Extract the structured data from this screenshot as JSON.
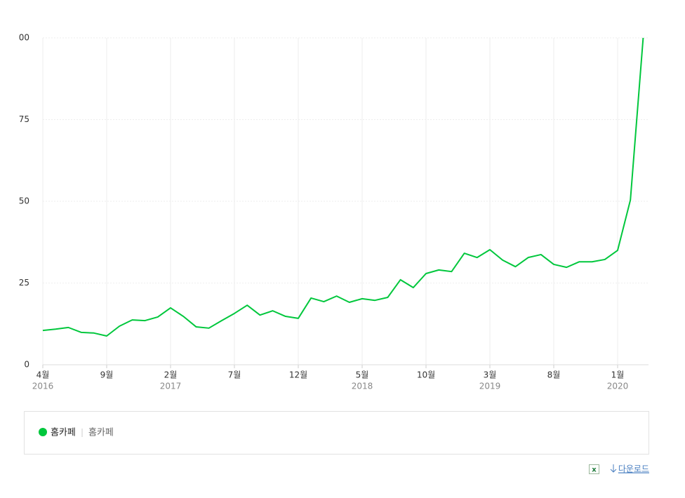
{
  "chart_data": {
    "type": "line",
    "categories": [
      "4월",
      null,
      null,
      null,
      null,
      "9월",
      null,
      null,
      null,
      null,
      "2월",
      null,
      null,
      null,
      null,
      "7월",
      null,
      null,
      null,
      null,
      "12월",
      null,
      null,
      null,
      null,
      "5월",
      null,
      null,
      null,
      null,
      "10월",
      null,
      null,
      null,
      null,
      "3월",
      null,
      null,
      null,
      null,
      "8월",
      null,
      null,
      null,
      null,
      "1월",
      null,
      null
    ],
    "year_labels": [
      "2016",
      null,
      null,
      null,
      null,
      null,
      null,
      null,
      null,
      null,
      "2017",
      null,
      null,
      null,
      null,
      null,
      null,
      null,
      null,
      null,
      null,
      null,
      null,
      null,
      null,
      "2018",
      null,
      null,
      null,
      null,
      null,
      null,
      null,
      null,
      null,
      "2019",
      null,
      null,
      null,
      null,
      null,
      null,
      null,
      null,
      null,
      "2020",
      null,
      null
    ],
    "series": [
      {
        "name": "홈카페",
        "color": "#00c73c",
        "values": [
          10.5,
          10.9,
          11.4,
          9.9,
          9.7,
          8.8,
          11.8,
          13.7,
          13.5,
          14.6,
          17.4,
          14.8,
          11.6,
          11.2,
          13.5,
          15.7,
          18.2,
          15.2,
          16.5,
          14.8,
          14.2,
          20.4,
          19.3,
          21,
          19.1,
          20.2,
          19.7,
          20.6,
          26,
          23.6,
          27.9,
          29,
          28.5,
          34.1,
          32.8,
          35.2,
          32,
          30,
          32.8,
          33.7,
          30.7,
          29.8,
          31.5,
          31.5,
          32.2,
          35,
          50.4,
          100
        ]
      }
    ],
    "legend_keywords": "홈카페",
    "download_label": "다운로드",
    "ylim": [
      0,
      100
    ],
    "yticks": [
      0,
      25,
      50,
      75,
      {
        "value": 100,
        "label": "00"
      }
    ],
    "grid": true
  }
}
